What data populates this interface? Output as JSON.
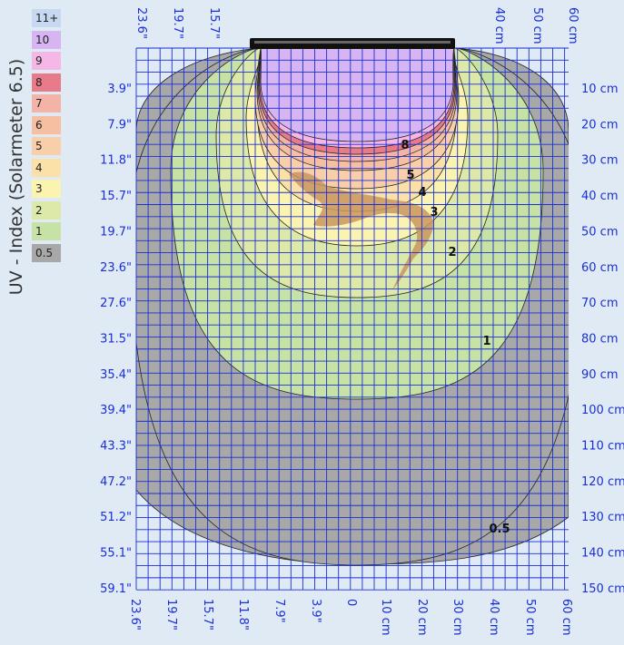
{
  "chart_data": {
    "type": "heatmap",
    "title": "",
    "legend_title": "UV - Index (Solarmeter 6.5)",
    "legend": [
      {
        "label": "11+",
        "color": "#c6d9f0"
      },
      {
        "label": "10",
        "color": "#d6b5f2"
      },
      {
        "label": "9",
        "color": "#f5b8e6"
      },
      {
        "label": "8",
        "color": "#e87b8a"
      },
      {
        "label": "7",
        "color": "#f3b3a6"
      },
      {
        "label": "6",
        "color": "#f6bfa1"
      },
      {
        "label": "5",
        "color": "#f9cfaa"
      },
      {
        "label": "4",
        "color": "#fbe0a8"
      },
      {
        "label": "3",
        "color": "#fbf3b0"
      },
      {
        "label": "2",
        "color": "#dde9a9"
      },
      {
        "label": "1",
        "color": "#c6e2a4"
      },
      {
        "label": "0.5",
        "color": "#a8a8a8"
      }
    ],
    "left_axis_labels": [
      "3.9\"",
      "7.9\"",
      "11.8\"",
      "15.7\"",
      "19.7\"",
      "23.6\"",
      "27.6\"",
      "31.5\"",
      "35.4\"",
      "39.4\"",
      "43.3\"",
      "47.2\"",
      "51.2\"",
      "55.1\"",
      "59.1\""
    ],
    "right_axis_labels": [
      "10 cm",
      "20 cm",
      "30 cm",
      "40 cm",
      "50 cm",
      "60 cm",
      "70 cm",
      "80 cm",
      "90 cm",
      "100 cm",
      "110 cm",
      "120 cm",
      "130 cm",
      "140 cm",
      "150 cm"
    ],
    "depth_range_cm": [
      0,
      150
    ],
    "top_axis_labels": [
      "23.6\"",
      "19.7\"",
      "15.7\"",
      "40 cm",
      "50 cm",
      "60 cm"
    ],
    "bottom_axis_labels": [
      "23.6\"",
      "19.7\"",
      "15.7\"",
      "11.8\"",
      "7.9\"",
      "3.9\"",
      "0",
      "10 cm",
      "20 cm",
      "30 cm",
      "40 cm",
      "50 cm",
      "60 cm"
    ],
    "contour_labels": [
      "8",
      "5",
      "4",
      "3",
      "2",
      "1",
      "0.5"
    ],
    "grid": true,
    "grid_color": "#1a2fd6",
    "axis_text_color": "#1a2fd6"
  }
}
